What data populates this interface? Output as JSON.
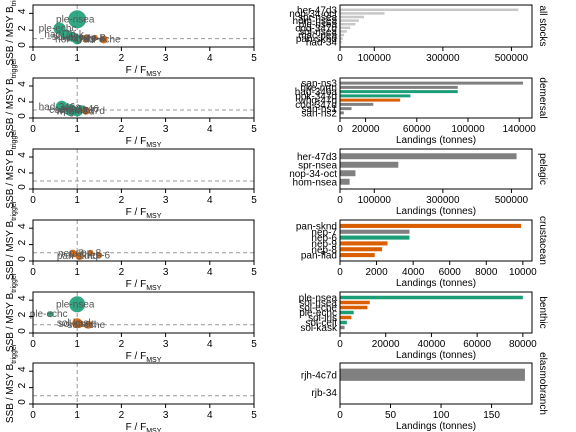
{
  "colors": {
    "green": "#1b9e77",
    "orange": "#d95f02",
    "grey": "#808080",
    "lightgrey": "#c8c8c8",
    "frame": "#000000",
    "refline": "#999999",
    "label": "#555555"
  },
  "kobe_axes": {
    "xlim": [
      0,
      5
    ],
    "ylim": [
      0,
      5
    ],
    "xticks": [
      "0",
      "1",
      "2",
      "3",
      "4",
      "5"
    ],
    "yticks": [
      "0",
      "2",
      "4"
    ],
    "xlabel_main": "F / F",
    "xlabel_sub": "MSY",
    "ylabel": "SSB / MSY B",
    "ylabel_sub": "trigger",
    "x_ref": 1.0,
    "y_ref": 1.0
  },
  "chart_data": [
    {
      "type": "scatter",
      "panel": "kobe-all-stocks",
      "points": [
        {
          "label": "ple-nsea",
          "x": 1.0,
          "y": 3.3,
          "c": "green",
          "size": 9
        },
        {
          "label": "ple-echc",
          "x": 0.6,
          "y": 2.2,
          "c": "green",
          "size": 6
        },
        {
          "label": "had-7b-k",
          "x": 0.75,
          "y": 1.5,
          "c": "green",
          "size": 5
        },
        {
          "label": "sol-nsea",
          "x": 0.9,
          "y": 1.2,
          "c": "green",
          "size": 5
        },
        {
          "label": "whg-7e-k",
          "x": 1.2,
          "y": 1.0,
          "c": "orange",
          "size": 4
        },
        {
          "label": "nep-8",
          "x": 1.4,
          "y": 1.1,
          "c": "orange",
          "size": 3
        },
        {
          "label": "sol-eche",
          "x": 1.6,
          "y": 0.9,
          "c": "orange",
          "size": 4
        },
        {
          "label": "her-47d3",
          "x": 1.0,
          "y": 0.9,
          "c": "green",
          "size": 5
        }
      ]
    },
    {
      "type": "bar",
      "panel": "landings-all-stocks",
      "section": "all stocks",
      "color": "lightgrey",
      "xlim": [
        0,
        560000
      ],
      "xticks": [
        0,
        100000,
        300000,
        500000
      ],
      "xlabel": "",
      "categories": [
        "her-47d3",
        "nop-34-oct",
        "spr-nsea",
        "hom-nsea",
        "ple-nsea",
        "cod-347d",
        "sol-nsea",
        "mac-nea",
        "pan-sknd",
        "had-34"
      ],
      "values": [
        520000,
        130000,
        70000,
        55000,
        45000,
        30000,
        20000,
        12000,
        8000,
        5000
      ]
    },
    {
      "type": "scatter",
      "panel": "kobe-demersal",
      "points": [
        {
          "label": "had-346a",
          "x": 0.65,
          "y": 1.4,
          "c": "green",
          "size": 6
        },
        {
          "label": "cod-7e-k",
          "x": 0.85,
          "y": 1.0,
          "c": "green",
          "size": 6
        },
        {
          "label": "whg-47d",
          "x": 1.0,
          "y": 0.8,
          "c": "green",
          "size": 5
        },
        {
          "label": "sai-3a46",
          "x": 1.1,
          "y": 1.1,
          "c": "green",
          "size": 4
        },
        {
          "label": "pok-347d",
          "x": 1.2,
          "y": 0.9,
          "c": "orange",
          "size": 4
        }
      ]
    },
    {
      "type": "bar",
      "panel": "landings-demersal",
      "section": "demersal",
      "xlim": [
        0,
        150000
      ],
      "xticks": [
        0,
        20000,
        60000,
        100000,
        140000
      ],
      "xlabel": "Landings (tonnes)",
      "categories": [
        "san-ns3",
        "hke-nrtn",
        "had-346a",
        "pok-347d",
        "whg-47d",
        "cod-347d",
        "san-ns1",
        "san-ns2"
      ],
      "values": [
        143000,
        92000,
        92000,
        55000,
        47000,
        26000,
        9000,
        3000
      ],
      "bar_colors": [
        "grey",
        "grey",
        "green",
        "green",
        "orange",
        "grey",
        "grey",
        "grey"
      ]
    },
    {
      "type": "scatter",
      "panel": "kobe-pelagic",
      "points": []
    },
    {
      "type": "bar",
      "panel": "landings-pelagic",
      "section": "pelagic",
      "color": "grey",
      "xlim": [
        0,
        560000
      ],
      "xticks": [
        0,
        100000,
        300000,
        500000
      ],
      "xlabel": "Landings (tonnes)",
      "categories": [
        "her-47d3",
        "spr-nsea",
        "nop-34-oct",
        "hom-nsea"
      ],
      "values": [
        515000,
        170000,
        45000,
        28000
      ]
    },
    {
      "type": "scatter",
      "panel": "kobe-crustacean",
      "points": [
        {
          "label": "nep-7",
          "x": 0.9,
          "y": 0.9,
          "c": "orange",
          "size": 4
        },
        {
          "label": "nep-8",
          "x": 1.3,
          "y": 1.0,
          "c": "orange",
          "size": 3
        },
        {
          "label": "pan-sknd",
          "x": 1.05,
          "y": 0.6,
          "c": "orange",
          "size": 4
        },
        {
          "label": "nep-6",
          "x": 1.5,
          "y": 0.7,
          "c": "orange",
          "size": 3
        }
      ]
    },
    {
      "type": "bar",
      "panel": "landings-crustacean",
      "section": "crustacean",
      "xlim": [
        0,
        10500
      ],
      "xticks": [
        0,
        2000,
        4000,
        6000,
        8000,
        10000
      ],
      "xlabel": "Landings (tonnes)",
      "categories": [
        "pan-sknd",
        "nep-7",
        "nep-6",
        "nep-9",
        "nep-8",
        "pan-flad"
      ],
      "values": [
        9900,
        3800,
        3800,
        2600,
        2300,
        1900
      ],
      "bar_colors": [
        "orange",
        "grey",
        "green",
        "orange",
        "orange",
        "orange"
      ]
    },
    {
      "type": "scatter",
      "panel": "kobe-benthic",
      "points": [
        {
          "label": "ple-nsea",
          "x": 1.0,
          "y": 3.5,
          "c": "green",
          "size": 8
        },
        {
          "label": "ple-echc",
          "x": 0.4,
          "y": 2.3,
          "c": "green",
          "size": 3
        },
        {
          "label": "sol-kask",
          "x": 1.0,
          "y": 1.2,
          "c": "orange",
          "size": 5
        },
        {
          "label": "sol-nsea",
          "x": 1.05,
          "y": 1.1,
          "c": "orange",
          "size": 4
        },
        {
          "label": "sol-eche",
          "x": 1.25,
          "y": 1.0,
          "c": "orange",
          "size": 4
        }
      ]
    },
    {
      "type": "bar",
      "panel": "landings-benthic",
      "section": "benthic",
      "xlim": [
        0,
        84000
      ],
      "xticks": [
        0,
        20000,
        40000,
        60000,
        80000
      ],
      "xlabel": "Landings (tonnes)",
      "categories": [
        "ple-nsea",
        "sol-nsea",
        "sol-eche",
        "ple-echc",
        "sol-iris",
        "sol-celt",
        "sol-kask"
      ],
      "values": [
        80000,
        13000,
        12000,
        6000,
        5000,
        3000,
        2000
      ],
      "bar_colors": [
        "green",
        "orange",
        "orange",
        "green",
        "orange",
        "green",
        "grey"
      ]
    },
    {
      "type": "scatter",
      "panel": "kobe-elasmobranch",
      "points": []
    },
    {
      "type": "bar",
      "panel": "landings-elasmobranch",
      "section": "elasmobranch",
      "color": "grey",
      "xlim": [
        0,
        190
      ],
      "xticks": [
        0,
        50,
        100,
        150
      ],
      "xlabel": "Landings (tonnes)",
      "categories": [
        "rjh-4c7d",
        "rjb-34"
      ],
      "values": [
        183,
        0
      ]
    }
  ]
}
